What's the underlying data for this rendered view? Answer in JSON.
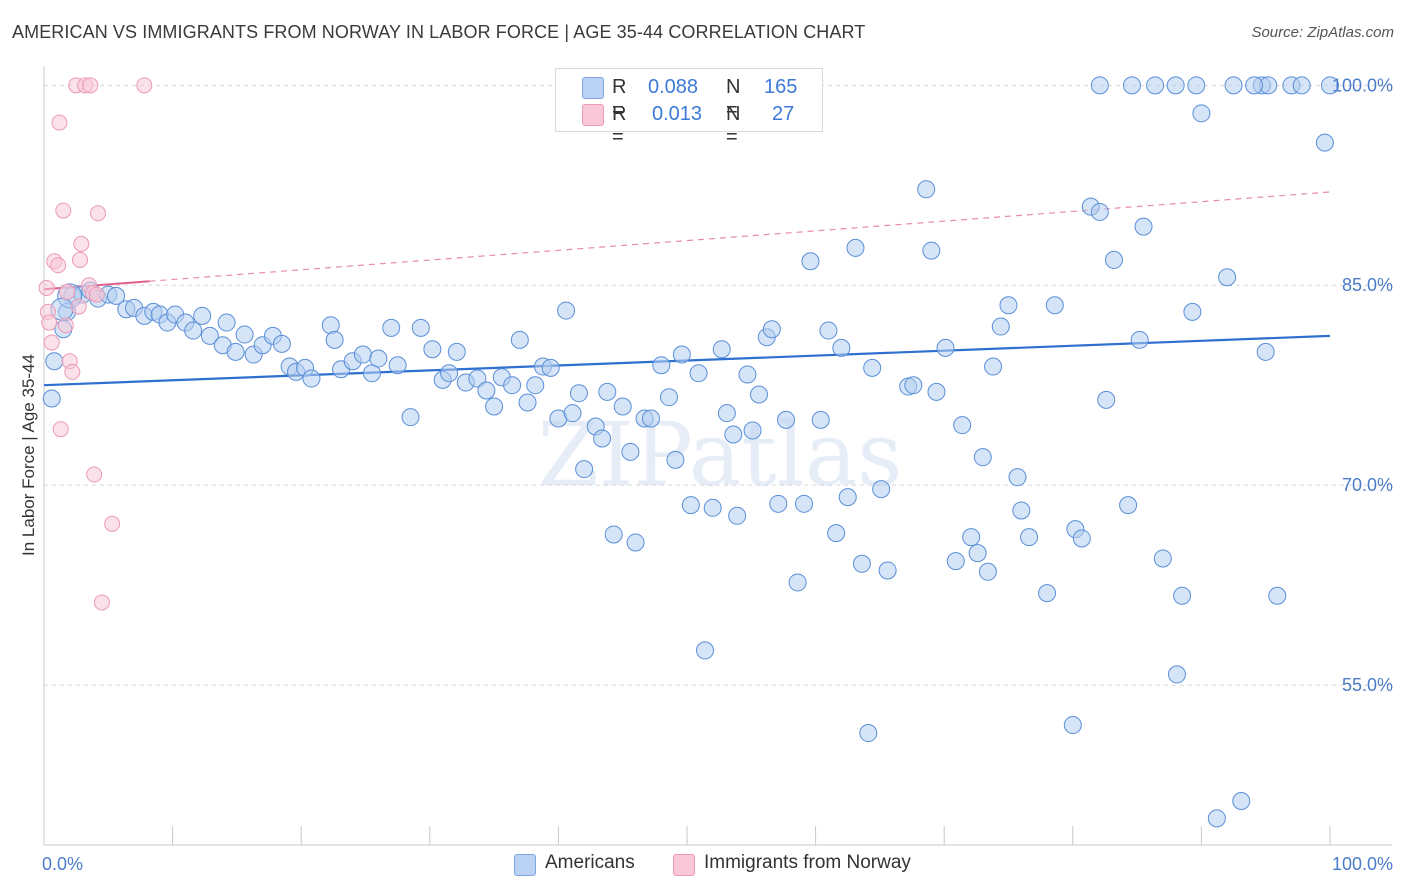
{
  "title": "AMERICAN VS IMMIGRANTS FROM NORWAY IN LABOR FORCE | AGE 35-44 CORRELATION CHART",
  "source": "Source: ZipAtlas.com",
  "watermark": "ZIPatlas",
  "colors": {
    "blue": "#4a86d8",
    "blue_fill": "#b9d2f3",
    "pink": "#e87aa0",
    "pink_fill": "#f8c8d8",
    "tick_text": "#4a7cc9"
  },
  "legend": {
    "rows": [
      {
        "r_label": "R =",
        "r_value": "0.088",
        "n_label": "N =",
        "n_value": "165"
      },
      {
        "r_label": "R =",
        "r_value": "0.013",
        "n_label": "N =",
        "n_value": "27"
      }
    ]
  },
  "bottom_legend": {
    "americans": "Americans",
    "norway": "Immigrants from Norway"
  },
  "chart_data": {
    "type": "scatter",
    "title": "AMERICAN VS IMMIGRANTS FROM NORWAY IN LABOR FORCE | AGE 35-44 CORRELATION CHART",
    "xlabel": "",
    "ylabel": "In Labor Force | Age 35-44",
    "xlim": [
      0,
      100
    ],
    "ylim": [
      43,
      101
    ],
    "x_tick_labels": [
      "0.0%",
      "100.0%"
    ],
    "y_ticks": [
      55,
      70,
      85,
      100
    ],
    "y_tick_labels": [
      "55.0%",
      "70.0%",
      "85.0%",
      "100.0%"
    ],
    "grid": true,
    "series": [
      {
        "name": "Americans",
        "color": "#4a86d8",
        "trend": {
          "x1": 0,
          "y1": 77.5,
          "x2": 100,
          "y2": 81.2
        },
        "points": [
          [
            0.6,
            76.5
          ],
          [
            0.8,
            79.3
          ],
          [
            1.5,
            81.7
          ],
          [
            1.8,
            83.0
          ],
          [
            2.2,
            84.2
          ],
          [
            3.0,
            84.3
          ],
          [
            3.6,
            84.6
          ],
          [
            4.2,
            84.0
          ],
          [
            5.0,
            84.3
          ],
          [
            5.6,
            84.2
          ],
          [
            6.4,
            83.2
          ],
          [
            7.0,
            83.3
          ],
          [
            7.8,
            82.7
          ],
          [
            8.5,
            83.0
          ],
          [
            9.0,
            82.8
          ],
          [
            9.6,
            82.2
          ],
          [
            10.2,
            82.8
          ],
          [
            11.0,
            82.2
          ],
          [
            11.6,
            81.6
          ],
          [
            12.3,
            82.7
          ],
          [
            12.9,
            81.2
          ],
          [
            13.9,
            80.5
          ],
          [
            14.2,
            82.2
          ],
          [
            14.9,
            80.0
          ],
          [
            15.6,
            81.3
          ],
          [
            16.3,
            79.8
          ],
          [
            17.0,
            80.5
          ],
          [
            17.8,
            81.2
          ],
          [
            18.5,
            80.6
          ],
          [
            19.1,
            78.9
          ],
          [
            19.6,
            78.5
          ],
          [
            20.3,
            78.8
          ],
          [
            20.8,
            78.0
          ],
          [
            22.3,
            82.0
          ],
          [
            22.6,
            80.9
          ],
          [
            23.1,
            78.7
          ],
          [
            24.0,
            79.3
          ],
          [
            24.8,
            79.8
          ],
          [
            25.5,
            78.4
          ],
          [
            26.0,
            79.5
          ],
          [
            27.0,
            81.8
          ],
          [
            27.5,
            79.0
          ],
          [
            28.5,
            75.1
          ],
          [
            29.3,
            81.8
          ],
          [
            30.2,
            80.2
          ],
          [
            31.0,
            77.9
          ],
          [
            31.5,
            78.4
          ],
          [
            32.1,
            80.0
          ],
          [
            32.8,
            77.7
          ],
          [
            33.7,
            78.0
          ],
          [
            34.4,
            77.1
          ],
          [
            35.0,
            75.9
          ],
          [
            35.6,
            78.1
          ],
          [
            36.4,
            77.5
          ],
          [
            37.0,
            80.9
          ],
          [
            37.6,
            76.2
          ],
          [
            38.2,
            77.5
          ],
          [
            38.8,
            78.9
          ],
          [
            39.4,
            78.8
          ],
          [
            40.0,
            75.0
          ],
          [
            40.6,
            83.1
          ],
          [
            41.1,
            75.4
          ],
          [
            41.6,
            76.9
          ],
          [
            42.0,
            71.2
          ],
          [
            42.9,
            74.4
          ],
          [
            43.4,
            73.5
          ],
          [
            43.8,
            77.0
          ],
          [
            44.3,
            66.3
          ],
          [
            45.0,
            75.9
          ],
          [
            45.6,
            72.5
          ],
          [
            46.0,
            65.7
          ],
          [
            46.7,
            75.0
          ],
          [
            47.2,
            75.0
          ],
          [
            48.0,
            79.0
          ],
          [
            48.6,
            76.6
          ],
          [
            49.1,
            71.9
          ],
          [
            49.6,
            79.8
          ],
          [
            50.3,
            68.5
          ],
          [
            50.9,
            78.4
          ],
          [
            51.4,
            57.6
          ],
          [
            52.0,
            68.3
          ],
          [
            52.7,
            80.2
          ],
          [
            53.1,
            75.4
          ],
          [
            53.6,
            73.8
          ],
          [
            53.9,
            67.7
          ],
          [
            54.7,
            78.3
          ],
          [
            55.1,
            74.1
          ],
          [
            55.6,
            76.8
          ],
          [
            56.2,
            81.1
          ],
          [
            56.6,
            81.7
          ],
          [
            57.1,
            68.6
          ],
          [
            57.7,
            74.9
          ],
          [
            58.6,
            62.7
          ],
          [
            59.1,
            68.6
          ],
          [
            59.6,
            86.8
          ],
          [
            60.4,
            74.9
          ],
          [
            61.0,
            81.6
          ],
          [
            61.6,
            66.4
          ],
          [
            62.0,
            80.3
          ],
          [
            62.5,
            69.1
          ],
          [
            63.1,
            87.8
          ],
          [
            63.6,
            64.1
          ],
          [
            64.4,
            78.8
          ],
          [
            65.1,
            69.7
          ],
          [
            65.6,
            63.6
          ],
          [
            67.2,
            77.4
          ],
          [
            67.6,
            77.5
          ],
          [
            68.6,
            92.2
          ],
          [
            69.0,
            87.6
          ],
          [
            69.4,
            77.0
          ],
          [
            70.1,
            80.3
          ],
          [
            70.9,
            64.3
          ],
          [
            71.4,
            74.5
          ],
          [
            72.1,
            66.1
          ],
          [
            72.6,
            64.9
          ],
          [
            73.0,
            72.1
          ],
          [
            73.4,
            63.5
          ],
          [
            73.8,
            78.9
          ],
          [
            74.4,
            81.9
          ],
          [
            75.0,
            83.5
          ],
          [
            75.7,
            70.6
          ],
          [
            76.0,
            68.1
          ],
          [
            76.6,
            66.1
          ],
          [
            78.0,
            61.9
          ],
          [
            78.6,
            83.5
          ],
          [
            80.0,
            52.0
          ],
          [
            80.2,
            66.7
          ],
          [
            80.7,
            66.0
          ],
          [
            81.4,
            90.9
          ],
          [
            82.1,
            90.5
          ],
          [
            82.6,
            76.4
          ],
          [
            83.2,
            86.9
          ],
          [
            84.3,
            68.5
          ],
          [
            85.2,
            80.9
          ],
          [
            85.5,
            89.4
          ],
          [
            87.0,
            64.5
          ],
          [
            88.1,
            55.8
          ],
          [
            88.5,
            61.7
          ],
          [
            89.3,
            83.0
          ],
          [
            90.0,
            97.9
          ],
          [
            91.2,
            45.0
          ],
          [
            92.0,
            85.6
          ],
          [
            93.1,
            46.3
          ],
          [
            95.0,
            80.0
          ],
          [
            95.9,
            61.7
          ],
          [
            97.0,
            100
          ],
          [
            99.6,
            95.7
          ],
          [
            64.1,
            51.4
          ],
          [
            82.1,
            100
          ],
          [
            84.6,
            100
          ],
          [
            86.4,
            100
          ],
          [
            88.0,
            100
          ],
          [
            89.6,
            100
          ],
          [
            92.5,
            100
          ],
          [
            94.7,
            100
          ],
          [
            95.2,
            100
          ],
          [
            97.8,
            100
          ],
          [
            100.0,
            100
          ],
          [
            94.1,
            100
          ]
        ]
      },
      {
        "name": "Immigrants from Norway",
        "color": "#e87aa0",
        "trend": {
          "x1": 0,
          "y1": 84.7,
          "x2": 8.2,
          "y2": 85.3
        },
        "trend_dashed": {
          "x1": 8.2,
          "y1": 85.3,
          "x2": 100,
          "y2": 92.0
        },
        "points": [
          [
            0.2,
            84.8
          ],
          [
            0.3,
            83.0
          ],
          [
            0.4,
            82.2
          ],
          [
            0.6,
            80.7
          ],
          [
            0.8,
            86.8
          ],
          [
            1.1,
            86.5
          ],
          [
            1.2,
            97.2
          ],
          [
            1.3,
            74.2
          ],
          [
            1.5,
            90.6
          ],
          [
            1.7,
            82.0
          ],
          [
            1.8,
            84.5
          ],
          [
            2.0,
            79.3
          ],
          [
            2.2,
            78.5
          ],
          [
            2.5,
            100
          ],
          [
            2.7,
            83.4
          ],
          [
            2.8,
            86.9
          ],
          [
            2.9,
            88.1
          ],
          [
            3.2,
            100
          ],
          [
            3.5,
            85.0
          ],
          [
            3.6,
            100
          ],
          [
            3.8,
            84.4
          ],
          [
            4.1,
            84.3
          ],
          [
            3.9,
            70.8
          ],
          [
            4.2,
            90.4
          ],
          [
            4.5,
            61.2
          ],
          [
            5.3,
            67.1
          ],
          [
            7.8,
            100
          ]
        ]
      }
    ]
  }
}
